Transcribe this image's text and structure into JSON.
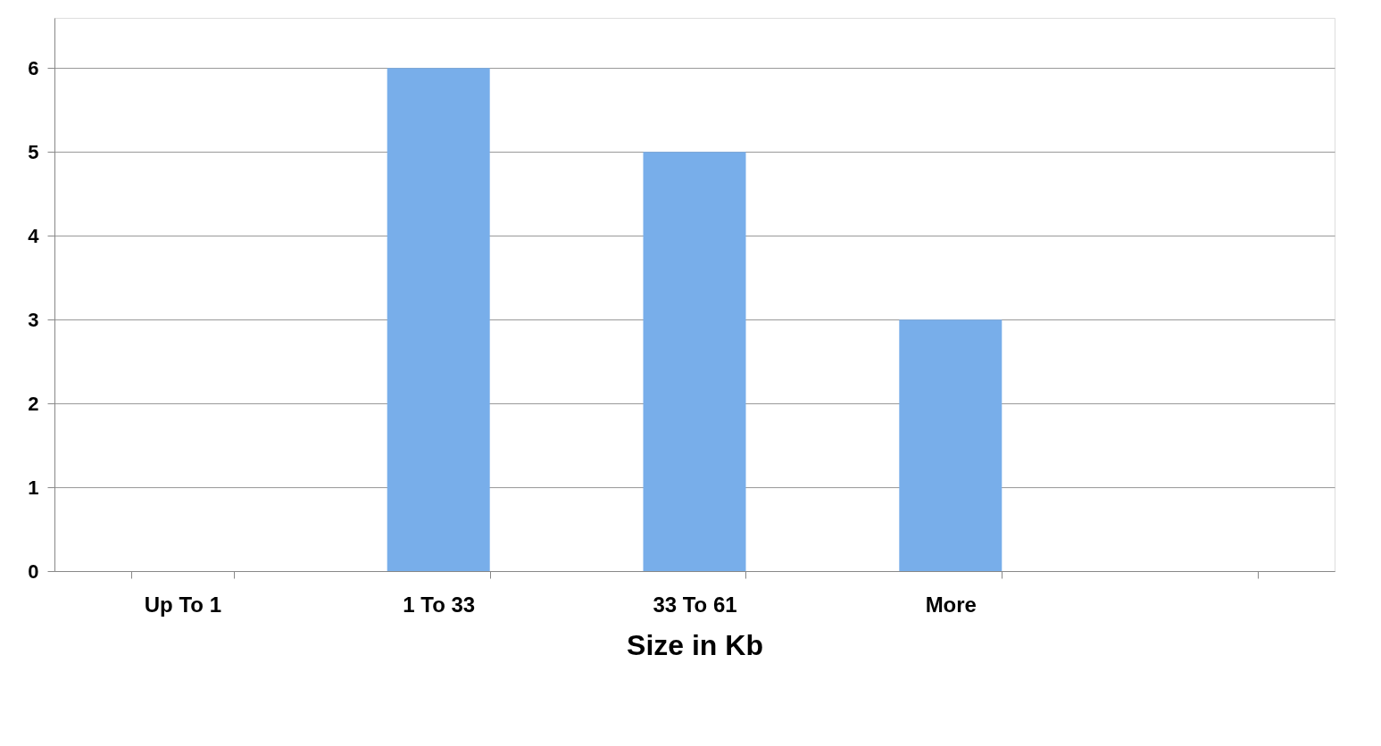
{
  "chart_data": {
    "type": "bar",
    "xlabel": "Size in Kb",
    "categories": [
      "Up To 1",
      "1 To 33",
      "33 To 61",
      "More",
      null
    ],
    "values": [
      0,
      6,
      5,
      3,
      0
    ],
    "color": "#78aeea",
    "ylim": [
      0,
      6.6
    ],
    "yticks": [
      0,
      1,
      2,
      3,
      4,
      5,
      6
    ],
    "grid": "y"
  }
}
